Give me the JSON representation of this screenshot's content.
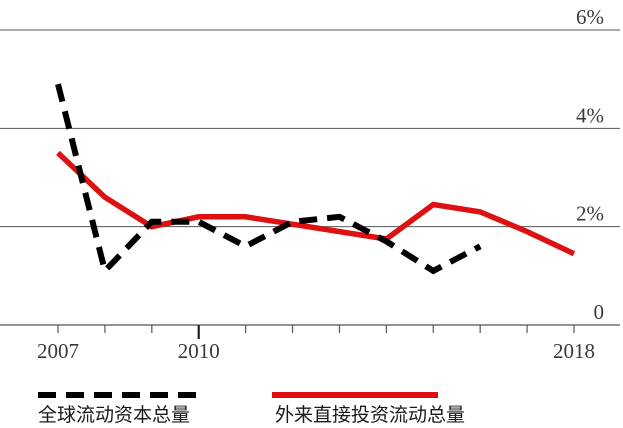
{
  "chart_data": {
    "type": "line",
    "title": "",
    "xlabel": "",
    "ylabel": "",
    "xlim": [
      2007,
      2018
    ],
    "ylim": [
      0,
      6
    ],
    "y_ticks": [
      {
        "value": 0,
        "label": "0"
      },
      {
        "value": 2,
        "label": "2%"
      },
      {
        "value": 4,
        "label": "4%"
      },
      {
        "value": 6,
        "label": "6%"
      }
    ],
    "x_tick_values": [
      2007,
      2008,
      2009,
      2010,
      2011,
      2012,
      2013,
      2014,
      2015,
      2016,
      2017,
      2018
    ],
    "x_tick_labels": [
      {
        "value": 2007,
        "label": "2007"
      },
      {
        "value": 2010,
        "label": "2010"
      },
      {
        "value": 2018,
        "label": "2018"
      }
    ],
    "grid": "horizontal",
    "legend": "bottom",
    "series": [
      {
        "name": "全球流动资本总量",
        "color": "#000000",
        "style": "dashed",
        "points": [
          [
            2007,
            4.9
          ],
          [
            2008,
            1.1
          ],
          [
            2009,
            2.1
          ],
          [
            2010,
            2.1
          ],
          [
            2011,
            1.6
          ],
          [
            2012,
            2.1
          ],
          [
            2013,
            2.2
          ],
          [
            2014,
            1.7
          ],
          [
            2015,
            1.1
          ],
          [
            2016,
            1.6
          ]
        ]
      },
      {
        "name": "外来直接投资流动总量",
        "color": "#dd1111",
        "style": "solid",
        "points": [
          [
            2007,
            3.5
          ],
          [
            2008,
            2.6
          ],
          [
            2009,
            2.0
          ],
          [
            2010,
            2.2
          ],
          [
            2011,
            2.2
          ],
          [
            2012,
            2.05
          ],
          [
            2013,
            1.9
          ],
          [
            2014,
            1.75
          ],
          [
            2015,
            2.45
          ],
          [
            2016,
            2.3
          ],
          [
            2017,
            1.9
          ],
          [
            2018,
            1.45
          ]
        ]
      }
    ]
  }
}
